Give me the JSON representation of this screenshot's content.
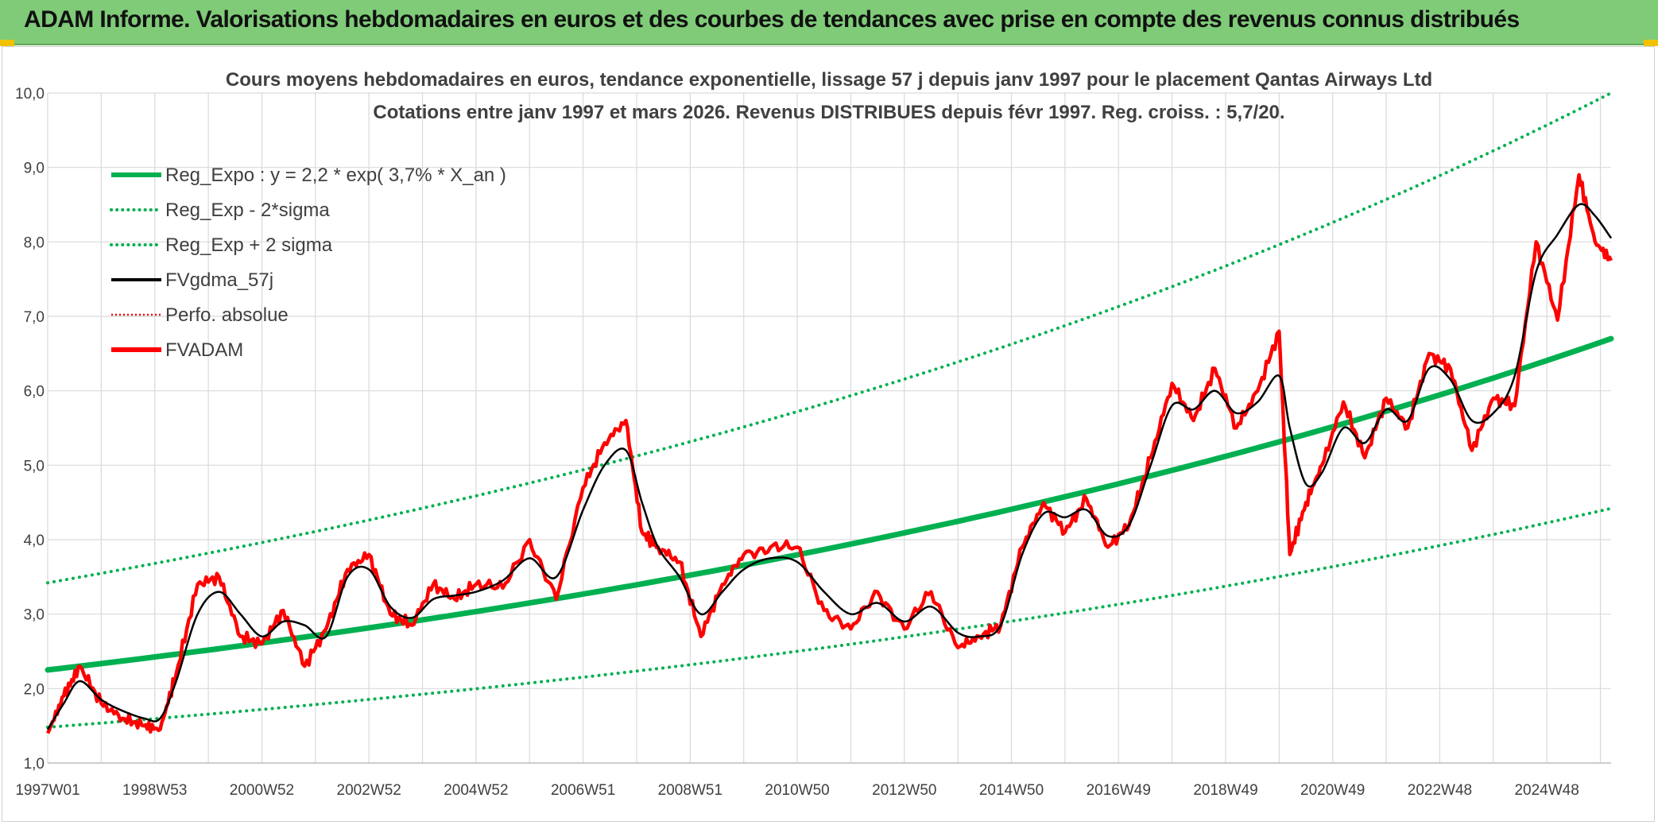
{
  "header": {
    "title": "ADAM Informe. Valorisations hebdomadaires en euros et des courbes de tendances avec prise en compte des revenus connus distribués"
  },
  "colors": {
    "banner": "#7fcb78",
    "regression": "#00b050",
    "fv57": "#000000",
    "fvadam": "#ff0000",
    "grid": "#d9d9d9"
  },
  "chart_data": {
    "type": "line",
    "title": "Cours moyens hebdomadaires en euros, tendance exponentielle, lissage 57 j depuis janv 1997 pour le placement Qantas Airways Ltd",
    "subtitle": "Cotations entre janv 1997 et mars 2026. Revenus DISTRIBUES depuis févr 1997. Reg. croiss. : 5,7/20.",
    "xlabel": "",
    "ylabel": "",
    "x_range": [
      1997.0,
      2026.2
    ],
    "ylim": [
      1.0,
      10.0
    ],
    "y_ticks": [
      "1,0",
      "2,0",
      "3,0",
      "4,0",
      "5,0",
      "6,0",
      "7,0",
      "8,0",
      "9,0",
      "10,0"
    ],
    "y_tick_values": [
      1,
      2,
      3,
      4,
      5,
      6,
      7,
      8,
      9,
      10
    ],
    "x_ticks": [
      {
        "label": "1997W01",
        "x": 1997.0
      },
      {
        "label": "1998W53",
        "x": 1999.0
      },
      {
        "label": "2000W52",
        "x": 2001.0
      },
      {
        "label": "2002W52",
        "x": 2003.0
      },
      {
        "label": "2004W52",
        "x": 2005.0
      },
      {
        "label": "2006W51",
        "x": 2007.0
      },
      {
        "label": "2008W51",
        "x": 2009.0
      },
      {
        "label": "2010W50",
        "x": 2011.0
      },
      {
        "label": "2012W50",
        "x": 2013.0
      },
      {
        "label": "2014W50",
        "x": 2015.0
      },
      {
        "label": "2016W49",
        "x": 2017.0
      },
      {
        "label": "2018W49",
        "x": 2019.0
      },
      {
        "label": "2020W49",
        "x": 2021.0
      },
      {
        "label": "2022W48",
        "x": 2023.0
      },
      {
        "label": "2024W48",
        "x": 2025.0
      }
    ],
    "grid": true,
    "legend_position": "top-left",
    "legend": [
      {
        "key": "reg_expo",
        "label": "Reg_Expo : y = 2,2 * exp( 3,7% *  X_an )",
        "style": "solid-thick",
        "color": "#00b050"
      },
      {
        "key": "reg_minus",
        "label": "Reg_Exp - 2*sigma",
        "style": "dotted",
        "color": "#00b050"
      },
      {
        "key": "reg_plus",
        "label": "Reg_Exp + 2 sigma",
        "style": "dotted",
        "color": "#00b050"
      },
      {
        "key": "fv57",
        "label": "FVgdma_57j",
        "style": "solid",
        "color": "#000000"
      },
      {
        "key": "perfo",
        "label": "Perfo. absolue",
        "style": "dotted",
        "color": "#ff0000"
      },
      {
        "key": "fvadam",
        "label": "FVADAM",
        "style": "solid-thick",
        "color": "#ff0000"
      }
    ],
    "series": [
      {
        "name": "Reg_Expo",
        "x": [
          1997.0,
          2003.0,
          2009.0,
          2015.0,
          2021.0,
          2026.2
        ],
        "values": [
          2.25,
          2.8,
          3.5,
          4.4,
          5.5,
          6.7
        ]
      },
      {
        "name": "Reg_Exp - 2*sigma",
        "x": [
          1997.0,
          2003.0,
          2009.0,
          2015.0,
          2021.0,
          2026.2
        ],
        "values": [
          1.48,
          1.85,
          2.3,
          2.9,
          3.6,
          4.42
        ]
      },
      {
        "name": "Reg_Exp + 2 sigma",
        "x": [
          1997.0,
          2003.0,
          2009.0,
          2015.0,
          2021.0,
          2026.2
        ],
        "values": [
          3.42,
          4.3,
          5.4,
          6.75,
          8.45,
          10.0
        ]
      },
      {
        "name": "FVgdma_57j",
        "x": [
          1997.0,
          1997.3,
          1997.6,
          1998.0,
          1998.4,
          1998.8,
          1999.1,
          1999.4,
          1999.8,
          2000.2,
          2000.6,
          2001.0,
          2001.4,
          2001.8,
          2002.2,
          2002.6,
          2003.0,
          2003.4,
          2003.8,
          2004.2,
          2004.6,
          2005.0,
          2005.5,
          2006.0,
          2006.5,
          2007.0,
          2007.4,
          2007.8,
          2008.1,
          2008.4,
          2008.8,
          2009.2,
          2009.6,
          2010.0,
          2010.5,
          2011.0,
          2011.5,
          2012.0,
          2012.5,
          2013.0,
          2013.5,
          2014.0,
          2014.4,
          2014.8,
          2015.2,
          2015.6,
          2016.0,
          2016.4,
          2016.8,
          2017.2,
          2017.6,
          2018.0,
          2018.4,
          2018.8,
          2019.2,
          2019.6,
          2020.0,
          2020.2,
          2020.5,
          2020.8,
          2021.2,
          2021.6,
          2022.0,
          2022.4,
          2022.8,
          2023.2,
          2023.6,
          2024.0,
          2024.4,
          2024.8,
          2025.2,
          2025.6,
          2025.9,
          2026.2
        ],
        "values": [
          1.45,
          1.8,
          2.1,
          1.85,
          1.7,
          1.6,
          1.6,
          2.1,
          3.0,
          3.3,
          3.0,
          2.7,
          2.9,
          2.85,
          2.7,
          3.5,
          3.6,
          3.1,
          2.95,
          3.2,
          3.25,
          3.3,
          3.45,
          3.75,
          3.5,
          4.4,
          5.0,
          5.2,
          4.5,
          3.9,
          3.5,
          3.0,
          3.3,
          3.6,
          3.75,
          3.7,
          3.3,
          3.0,
          3.15,
          2.9,
          3.1,
          2.75,
          2.7,
          2.85,
          3.8,
          4.35,
          4.3,
          4.4,
          4.05,
          4.2,
          5.0,
          5.8,
          5.75,
          6.0,
          5.7,
          5.85,
          6.2,
          5.5,
          4.75,
          4.9,
          5.5,
          5.3,
          5.75,
          5.6,
          6.3,
          6.15,
          5.6,
          5.7,
          6.2,
          7.6,
          8.1,
          8.5,
          8.35,
          8.05
        ]
      },
      {
        "name": "FVADAM",
        "x": [
          1997.0,
          1997.3,
          1997.6,
          1998.0,
          1998.4,
          1998.8,
          1999.1,
          1999.4,
          1999.8,
          2000.2,
          2000.6,
          2001.0,
          2001.4,
          2001.8,
          2002.2,
          2002.6,
          2003.0,
          2003.4,
          2003.8,
          2004.2,
          2004.6,
          2005.0,
          2005.5,
          2006.0,
          2006.5,
          2007.0,
          2007.4,
          2007.8,
          2008.1,
          2008.4,
          2008.8,
          2009.2,
          2009.6,
          2010.0,
          2010.5,
          2011.0,
          2011.5,
          2012.0,
          2012.5,
          2013.0,
          2013.5,
          2014.0,
          2014.4,
          2014.8,
          2015.2,
          2015.6,
          2016.0,
          2016.4,
          2016.8,
          2017.2,
          2017.6,
          2018.0,
          2018.4,
          2018.8,
          2019.2,
          2019.6,
          2020.0,
          2020.2,
          2020.5,
          2020.8,
          2021.2,
          2021.6,
          2022.0,
          2022.4,
          2022.8,
          2023.2,
          2023.6,
          2024.0,
          2024.4,
          2024.8,
          2025.2,
          2025.6,
          2025.9,
          2026.2
        ],
        "values": [
          1.4,
          1.9,
          2.3,
          1.8,
          1.6,
          1.5,
          1.45,
          2.2,
          3.4,
          3.5,
          2.7,
          2.6,
          3.05,
          2.3,
          2.8,
          3.6,
          3.8,
          3.0,
          2.85,
          3.4,
          3.2,
          3.4,
          3.35,
          4.0,
          3.2,
          4.7,
          5.3,
          5.6,
          4.1,
          3.9,
          3.7,
          2.7,
          3.4,
          3.8,
          3.9,
          3.9,
          3.05,
          2.8,
          3.3,
          2.8,
          3.3,
          2.55,
          2.7,
          2.85,
          3.9,
          4.5,
          4.1,
          4.55,
          3.9,
          4.2,
          5.1,
          6.1,
          5.6,
          6.3,
          5.5,
          6.0,
          6.8,
          3.8,
          4.5,
          5.0,
          5.85,
          5.1,
          5.9,
          5.5,
          6.5,
          6.3,
          5.2,
          5.9,
          5.8,
          8.0,
          6.95,
          8.9,
          8.0,
          7.75
        ]
      }
    ]
  }
}
